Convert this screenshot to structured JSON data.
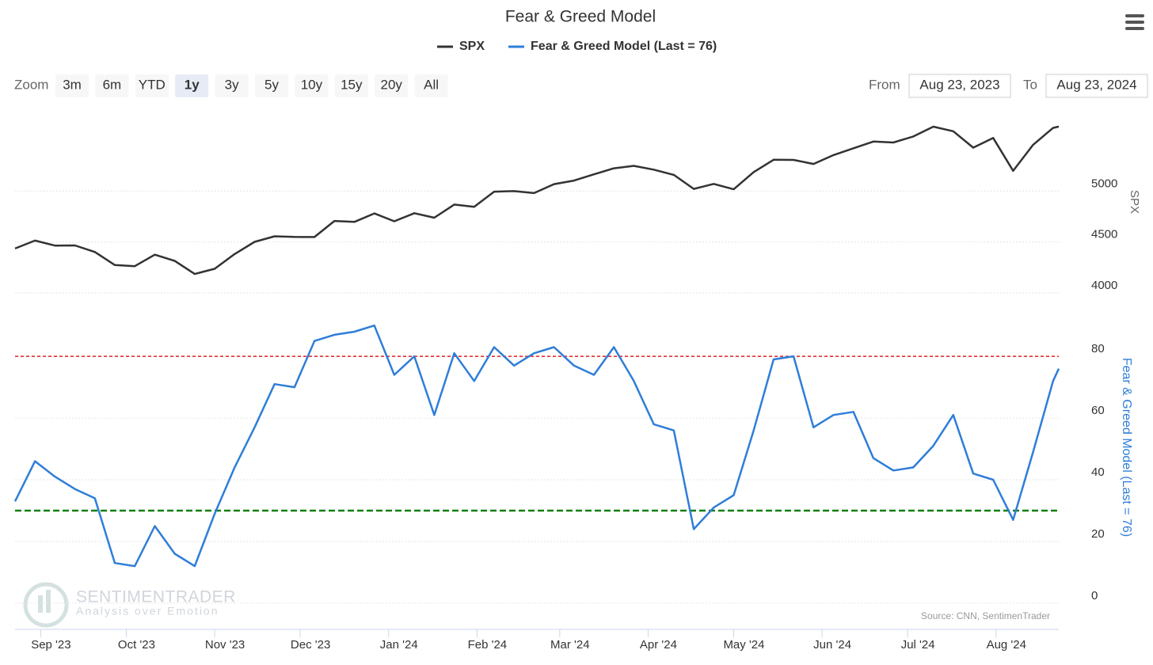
{
  "chart_data": {
    "type": "line",
    "title": "Fear & Greed Model",
    "xlim": [
      "2023-08-23",
      "2024-08-23"
    ],
    "xticks": [
      {
        "value": "2023-09",
        "label": "Sep '23"
      },
      {
        "value": "2023-10",
        "label": "Oct '23"
      },
      {
        "value": "2023-11",
        "label": "Nov '23"
      },
      {
        "value": "2023-12",
        "label": "Dec '23"
      },
      {
        "value": "2024-01",
        "label": "Jan '24"
      },
      {
        "value": "2024-02",
        "label": "Feb '24"
      },
      {
        "value": "2024-03",
        "label": "Mar '24"
      },
      {
        "value": "2024-04",
        "label": "Apr '24"
      },
      {
        "value": "2024-05",
        "label": "May '24"
      },
      {
        "value": "2024-06",
        "label": "Jun '24"
      },
      {
        "value": "2024-07",
        "label": "Jul '24"
      },
      {
        "value": "2024-08",
        "label": "Aug '24"
      }
    ],
    "x": [
      "2023-08-23",
      "2023-08-30",
      "2023-09-06",
      "2023-09-13",
      "2023-09-20",
      "2023-09-27",
      "2023-10-04",
      "2023-10-11",
      "2023-10-18",
      "2023-10-25",
      "2023-11-01",
      "2023-11-08",
      "2023-11-15",
      "2023-11-22",
      "2023-11-29",
      "2023-12-06",
      "2023-12-13",
      "2023-12-20",
      "2023-12-27",
      "2024-01-03",
      "2024-01-10",
      "2024-01-17",
      "2024-01-24",
      "2024-01-31",
      "2024-02-07",
      "2024-02-14",
      "2024-02-21",
      "2024-02-28",
      "2024-03-06",
      "2024-03-13",
      "2024-03-20",
      "2024-03-27",
      "2024-04-03",
      "2024-04-10",
      "2024-04-17",
      "2024-04-24",
      "2024-05-01",
      "2024-05-08",
      "2024-05-15",
      "2024-05-22",
      "2024-05-29",
      "2024-06-05",
      "2024-06-12",
      "2024-06-19",
      "2024-06-26",
      "2024-07-03",
      "2024-07-10",
      "2024-07-17",
      "2024-07-24",
      "2024-07-31",
      "2024-08-07",
      "2024-08-14",
      "2024-08-21",
      "2024-08-23"
    ],
    "series": [
      {
        "name": "SPX",
        "color": "#333333",
        "axis": "y",
        "values": [
          4436,
          4514,
          4465,
          4467,
          4402,
          4274,
          4263,
          4376,
          4314,
          4186,
          4237,
          4382,
          4502,
          4556,
          4550,
          4549,
          4707,
          4698,
          4781,
          4704,
          4783,
          4739,
          4868,
          4846,
          4995,
          5000,
          4981,
          5069,
          5104,
          5165,
          5224,
          5248,
          5211,
          5160,
          5022,
          5071,
          5018,
          5187,
          5308,
          5307,
          5267,
          5354,
          5421,
          5487,
          5478,
          5537,
          5633,
          5588,
          5427,
          5522,
          5199,
          5455,
          5621,
          5634
        ]
      },
      {
        "name": "Fear & Greed Model (Last = 76)",
        "color": "#2f7ed8",
        "axis": "y2",
        "values": [
          33,
          46,
          41,
          37,
          34,
          13,
          12,
          25,
          16,
          12,
          29,
          44,
          57,
          71,
          70,
          85,
          87,
          88,
          90,
          74,
          80,
          61,
          81,
          72,
          83,
          77,
          81,
          83,
          77,
          74,
          83,
          72,
          58,
          56,
          24,
          31,
          35,
          56,
          79,
          80,
          57,
          61,
          62,
          47,
          43,
          44,
          51,
          61,
          42,
          40,
          27,
          49,
          72,
          76
        ]
      }
    ],
    "ylabel": "SPX",
    "ylim": [
      4000,
      5750
    ],
    "yticks": [
      4000,
      4500,
      5000
    ],
    "y2label": "Fear & Greed Model (Last = 76)",
    "y2lim": [
      -8.5,
      98
    ],
    "y2ticks": [
      0,
      20,
      40,
      60,
      80
    ],
    "plot_lines": [
      {
        "value": 80,
        "color": "#e02020"
      },
      {
        "value": 30,
        "color": "#108010"
      }
    ],
    "grid": true,
    "credits": "Source: CNN, SentimenTrader"
  },
  "range_selector": {
    "zoom_label": "Zoom",
    "buttons": [
      "3m",
      "6m",
      "YTD",
      "1y",
      "3y",
      "5y",
      "10y",
      "15y",
      "20y",
      "All"
    ],
    "selected": "1y",
    "from_label": "From",
    "from": "Aug 23, 2023",
    "to_label": "To",
    "to": "Aug 23, 2024"
  },
  "watermark": {
    "name": "SENTIMENTRADER",
    "tagline": "Analysis over Emotion"
  }
}
